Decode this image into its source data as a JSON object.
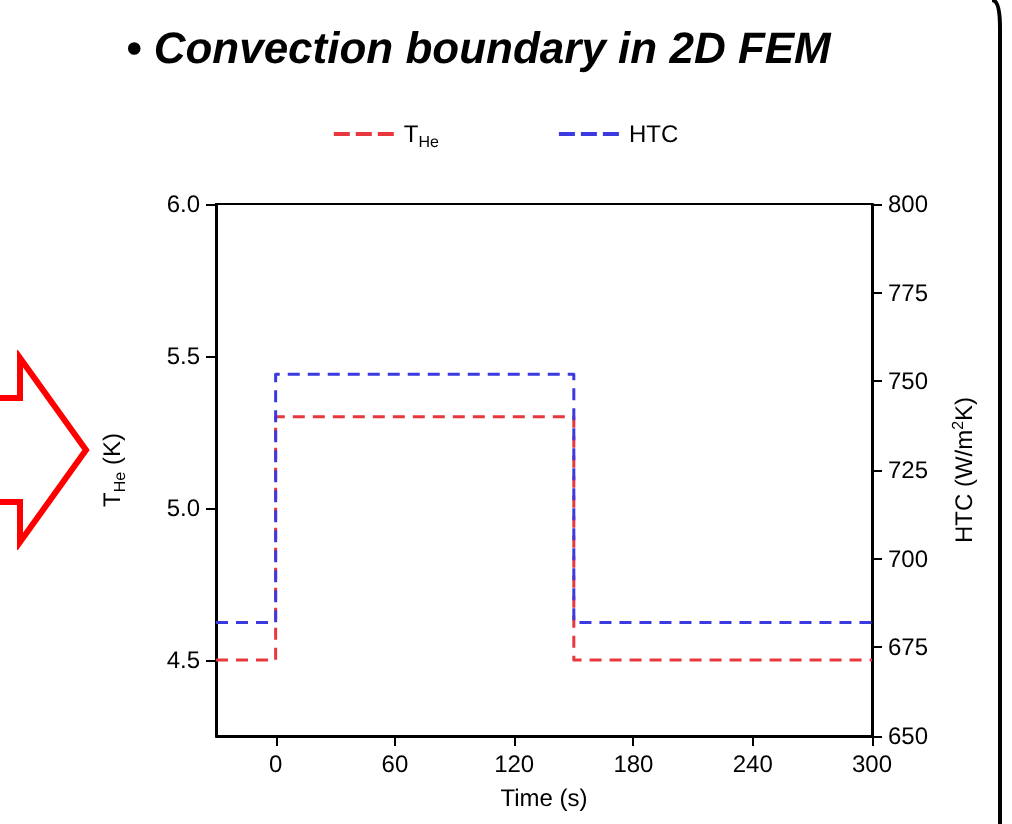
{
  "chart_data": {
    "type": "step",
    "title": "• Convection boundary in 2D FEM",
    "xlabel": "Time (s)",
    "ylabel": "T$_{He}$ (K)",
    "y2label": "HTC (W/m$^{2}$K)",
    "series": [
      {
        "name": "T$_{He}$",
        "color": "#e8383d",
        "x": [
          -30,
          0,
          150,
          300
        ],
        "values": [
          4.5,
          5.3,
          4.5,
          4.5
        ]
      },
      {
        "name": "HTC",
        "color": "#3a3ae0",
        "axis": "y2",
        "x": [
          -30,
          0,
          150,
          300
        ],
        "values": [
          682,
          752,
          682,
          682
        ]
      }
    ],
    "xlim": [
      -30,
      300
    ],
    "xticks": [
      0,
      60,
      120,
      180,
      240,
      300
    ],
    "ylim": [
      4.25,
      6.0
    ],
    "yticks": [
      4.5,
      {
        "value": 5.0,
        "label": "5.0"
      },
      5.5,
      {
        "value": 6.0,
        "label": "6.0"
      }
    ],
    "y2lim": [
      650,
      800
    ],
    "y2ticks": [
      650,
      675,
      700,
      725,
      750,
      775,
      800
    ],
    "line_style": "dashed",
    "marker": "none",
    "legend": "top",
    "grid": false
  }
}
